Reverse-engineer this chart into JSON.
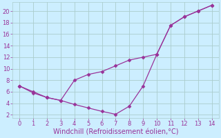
{
  "line1_x": [
    0,
    1,
    2,
    3,
    4,
    5,
    6,
    7,
    8,
    9,
    10,
    11,
    12,
    13,
    14
  ],
  "line1_y": [
    7.0,
    6.0,
    5.0,
    4.5,
    8.0,
    9.0,
    9.5,
    10.5,
    11.5,
    12.0,
    12.5,
    17.5,
    19.0,
    20.0,
    21.0
  ],
  "line2_x": [
    0,
    1,
    2,
    3,
    4,
    5,
    6,
    7,
    8,
    9,
    10,
    11,
    12,
    13,
    14
  ],
  "line2_y": [
    7.0,
    5.8,
    5.0,
    4.5,
    3.8,
    3.2,
    2.6,
    2.1,
    3.5,
    7.0,
    12.5,
    17.5,
    19.0,
    20.0,
    21.0
  ],
  "line_color": "#993399",
  "background_color": "#cceeff",
  "grid_color": "#aacccc",
  "xlabel": "Windchill (Refroidissement éolien,°C)",
  "xlim": [
    -0.5,
    14.5
  ],
  "ylim": [
    1.5,
    21.5
  ],
  "xticks": [
    0,
    1,
    2,
    3,
    4,
    5,
    6,
    7,
    8,
    9,
    10,
    11,
    12,
    13,
    14
  ],
  "yticks": [
    2,
    4,
    6,
    8,
    10,
    12,
    14,
    16,
    18,
    20
  ],
  "xlabel_fontsize": 7,
  "tick_fontsize": 6,
  "marker": "D",
  "marker_size": 2.5,
  "linewidth": 0.9
}
